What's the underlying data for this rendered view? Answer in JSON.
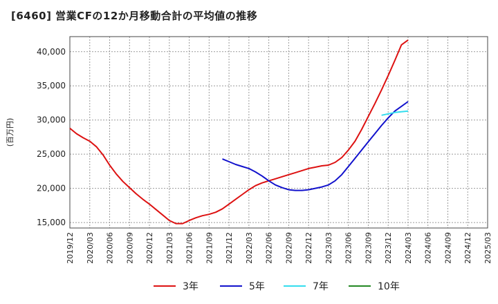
{
  "chart_data": {
    "type": "line",
    "title": "[6460]  営業CFの12か月移動合計の平均値の推移",
    "ylabel": "(百万円)",
    "xlabel": "",
    "ylim": [
      14200,
      42200
    ],
    "yticks": [
      15000,
      20000,
      25000,
      30000,
      35000,
      40000
    ],
    "ytick_labels": [
      "15,000",
      "20,000",
      "25,000",
      "30,000",
      "35,000",
      "40,000"
    ],
    "xlim": [
      "2019/12",
      "2025/03"
    ],
    "xtick_labels": [
      "2019/12",
      "2020/03",
      "2020/06",
      "2020/09",
      "2020/12",
      "2021/03",
      "2021/06",
      "2021/09",
      "2021/12",
      "2022/03",
      "2022/06",
      "2022/09",
      "2022/12",
      "2023/03",
      "2023/06",
      "2023/09",
      "2023/12",
      "2024/03",
      "2024/06",
      "2024/09",
      "2024/12",
      "2025/03"
    ],
    "grid": true,
    "legend_position": "bottom",
    "colors": {
      "3年": "#dd1111",
      "5年": "#1111cc",
      "7年": "#33ddee",
      "10年": "#228822"
    },
    "series": [
      {
        "name": "3年",
        "x": [
          "2019/12",
          "2020/01",
          "2020/02",
          "2020/03",
          "2020/04",
          "2020/05",
          "2020/06",
          "2020/07",
          "2020/08",
          "2020/09",
          "2020/10",
          "2020/11",
          "2020/12",
          "2021/01",
          "2021/02",
          "2021/03",
          "2021/04",
          "2021/05",
          "2021/06",
          "2021/07",
          "2021/08",
          "2021/09",
          "2021/10",
          "2021/11",
          "2021/12",
          "2022/01",
          "2022/02",
          "2022/03",
          "2022/04",
          "2022/05",
          "2022/06",
          "2022/07",
          "2022/08",
          "2022/09",
          "2022/10",
          "2022/11",
          "2022/12",
          "2023/01",
          "2023/02",
          "2023/03",
          "2023/04",
          "2023/05",
          "2023/06",
          "2023/07",
          "2023/08",
          "2023/09",
          "2023/10",
          "2023/11",
          "2023/12",
          "2024/01",
          "2024/02",
          "2024/03"
        ],
        "values": [
          28800,
          28000,
          27400,
          26900,
          26100,
          24900,
          23400,
          22100,
          21000,
          20100,
          19200,
          18400,
          17700,
          16900,
          16100,
          15300,
          14850,
          14850,
          15300,
          15700,
          16000,
          16200,
          16500,
          17000,
          17700,
          18400,
          19100,
          19800,
          20400,
          20800,
          21100,
          21400,
          21700,
          22000,
          22300,
          22600,
          22900,
          23100,
          23300,
          23400,
          23800,
          24500,
          25600,
          26900,
          28600,
          30500,
          32400,
          34400,
          36500,
          38700,
          41000,
          41700
        ]
      },
      {
        "name": "5年",
        "x": [
          "2021/11",
          "2021/12",
          "2022/01",
          "2022/02",
          "2022/03",
          "2022/04",
          "2022/05",
          "2022/06",
          "2022/07",
          "2022/08",
          "2022/09",
          "2022/10",
          "2022/11",
          "2022/12",
          "2023/01",
          "2023/02",
          "2023/03",
          "2023/04",
          "2023/05",
          "2023/06",
          "2023/07",
          "2023/08",
          "2023/09",
          "2023/10",
          "2023/11",
          "2023/12",
          "2024/01",
          "2024/02",
          "2024/03"
        ],
        "values": [
          24300,
          23900,
          23500,
          23200,
          22900,
          22400,
          21800,
          21100,
          20500,
          20100,
          19800,
          19700,
          19700,
          19800,
          20000,
          20200,
          20500,
          21100,
          22000,
          23200,
          24400,
          25600,
          26800,
          28000,
          29200,
          30300,
          31300,
          32000,
          32700
        ]
      },
      {
        "name": "7年",
        "x": [
          "2023/11",
          "2023/12",
          "2024/01",
          "2024/02",
          "2024/03"
        ],
        "values": [
          30700,
          30900,
          31100,
          31200,
          31300
        ]
      },
      {
        "name": "10年",
        "x": [],
        "values": []
      }
    ]
  }
}
